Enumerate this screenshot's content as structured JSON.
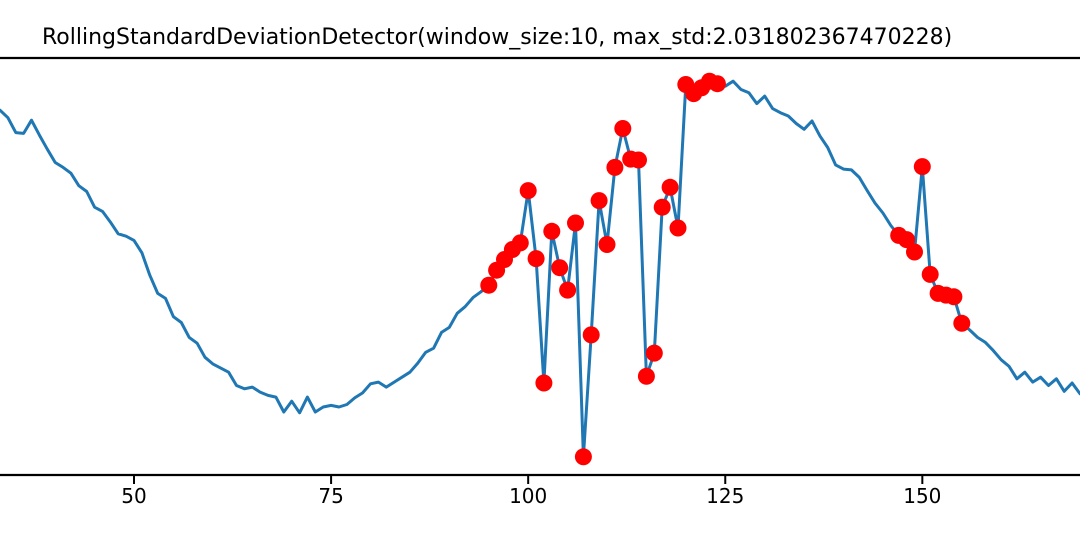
{
  "chart_data": {
    "type": "line",
    "title": "RollingStandardDeviationDetector(window_size:10, max_std:2.031802367470228)",
    "xlabel": "",
    "ylabel": "",
    "xlim": [
      33,
      170
    ],
    "ylim": [
      -2.76,
      2.27
    ],
    "xticks": [
      50,
      75,
      100,
      125,
      150
    ],
    "xtick_labels": [
      "50",
      "75",
      "100",
      "125",
      "150"
    ],
    "grid": false,
    "legend_position": "none",
    "series": [
      {
        "name": "signal",
        "color": "#1f77b4",
        "line_width": 3,
        "x": [
          33,
          34,
          35,
          36,
          37,
          38,
          39,
          40,
          41,
          42,
          43,
          44,
          45,
          46,
          47,
          48,
          49,
          50,
          51,
          52,
          53,
          54,
          55,
          56,
          57,
          58,
          59,
          60,
          61,
          62,
          63,
          64,
          65,
          66,
          67,
          68,
          69,
          70,
          71,
          72,
          73,
          74,
          75,
          76,
          77,
          78,
          79,
          80,
          81,
          82,
          83,
          84,
          85,
          86,
          87,
          88,
          89,
          90,
          91,
          92,
          93,
          94,
          95,
          96,
          97,
          98,
          99,
          100,
          101,
          102,
          103,
          104,
          105,
          106,
          107,
          108,
          109,
          110,
          111,
          112,
          113,
          114,
          115,
          116,
          117,
          118,
          119,
          120,
          121,
          122,
          123,
          124,
          125,
          126,
          127,
          128,
          129,
          130,
          131,
          132,
          133,
          134,
          135,
          136,
          137,
          138,
          139,
          140,
          141,
          142,
          143,
          144,
          145,
          146,
          147,
          148,
          149,
          150,
          151,
          152,
          153,
          154,
          155,
          156,
          157,
          158,
          159,
          160,
          161,
          162,
          163,
          164,
          165,
          166,
          167,
          168,
          169,
          170
        ],
        "y": [
          1.64,
          1.55,
          1.37,
          1.36,
          1.52,
          1.34,
          1.17,
          1.01,
          0.95,
          0.88,
          0.73,
          0.66,
          0.47,
          0.42,
          0.29,
          0.15,
          0.12,
          0.07,
          -0.08,
          -0.35,
          -0.57,
          -0.63,
          -0.85,
          -0.92,
          -1.1,
          -1.17,
          -1.34,
          -1.42,
          -1.47,
          -1.52,
          -1.68,
          -1.72,
          -1.7,
          -1.76,
          -1.8,
          -1.82,
          -2.0,
          -1.87,
          -2.01,
          -1.82,
          -2.0,
          -1.94,
          -1.92,
          -1.94,
          -1.91,
          -1.83,
          -1.77,
          -1.66,
          -1.64,
          -1.7,
          -1.64,
          -1.58,
          -1.52,
          -1.41,
          -1.28,
          -1.23,
          -1.04,
          -0.98,
          -0.81,
          -0.73,
          -0.62,
          -0.55,
          -0.47,
          -0.29,
          -0.16,
          -0.04,
          0.04,
          0.67,
          -0.15,
          -1.65,
          0.18,
          -0.26,
          -0.53,
          0.28,
          -2.54,
          -1.07,
          0.55,
          0.02,
          0.95,
          1.42,
          1.05,
          1.04,
          -1.57,
          -1.29,
          0.47,
          0.71,
          0.22,
          1.95,
          1.84,
          1.91,
          1.99,
          1.96,
          1.93,
          1.99,
          1.89,
          1.85,
          1.72,
          1.81,
          1.66,
          1.61,
          1.57,
          1.48,
          1.41,
          1.51,
          1.33,
          1.19,
          0.98,
          0.93,
          0.92,
          0.83,
          0.67,
          0.52,
          0.4,
          0.25,
          0.13,
          0.08,
          -0.07,
          0.96,
          -0.34,
          -0.57,
          -0.59,
          -0.61,
          -0.93,
          -1.01,
          -1.1,
          -1.16,
          -1.26,
          -1.37,
          -1.45,
          -1.6,
          -1.52,
          -1.64,
          -1.58,
          -1.68,
          -1.6,
          -1.75,
          -1.65,
          -1.78
        ]
      }
    ],
    "anomalies": {
      "name": "detected-anomalies",
      "color": "#ff0000",
      "marker_radius": 8.5,
      "x": [
        95,
        96,
        97,
        98,
        99,
        100,
        101,
        102,
        103,
        104,
        105,
        106,
        107,
        108,
        109,
        110,
        111,
        112,
        113,
        114,
        115,
        116,
        117,
        118,
        119,
        120,
        121,
        122,
        123,
        124,
        147,
        148,
        149,
        150,
        151,
        152,
        153,
        154,
        155
      ]
    }
  },
  "style": {
    "spine_color": "#000000",
    "background": "#ffffff",
    "text_color": "#000000"
  }
}
